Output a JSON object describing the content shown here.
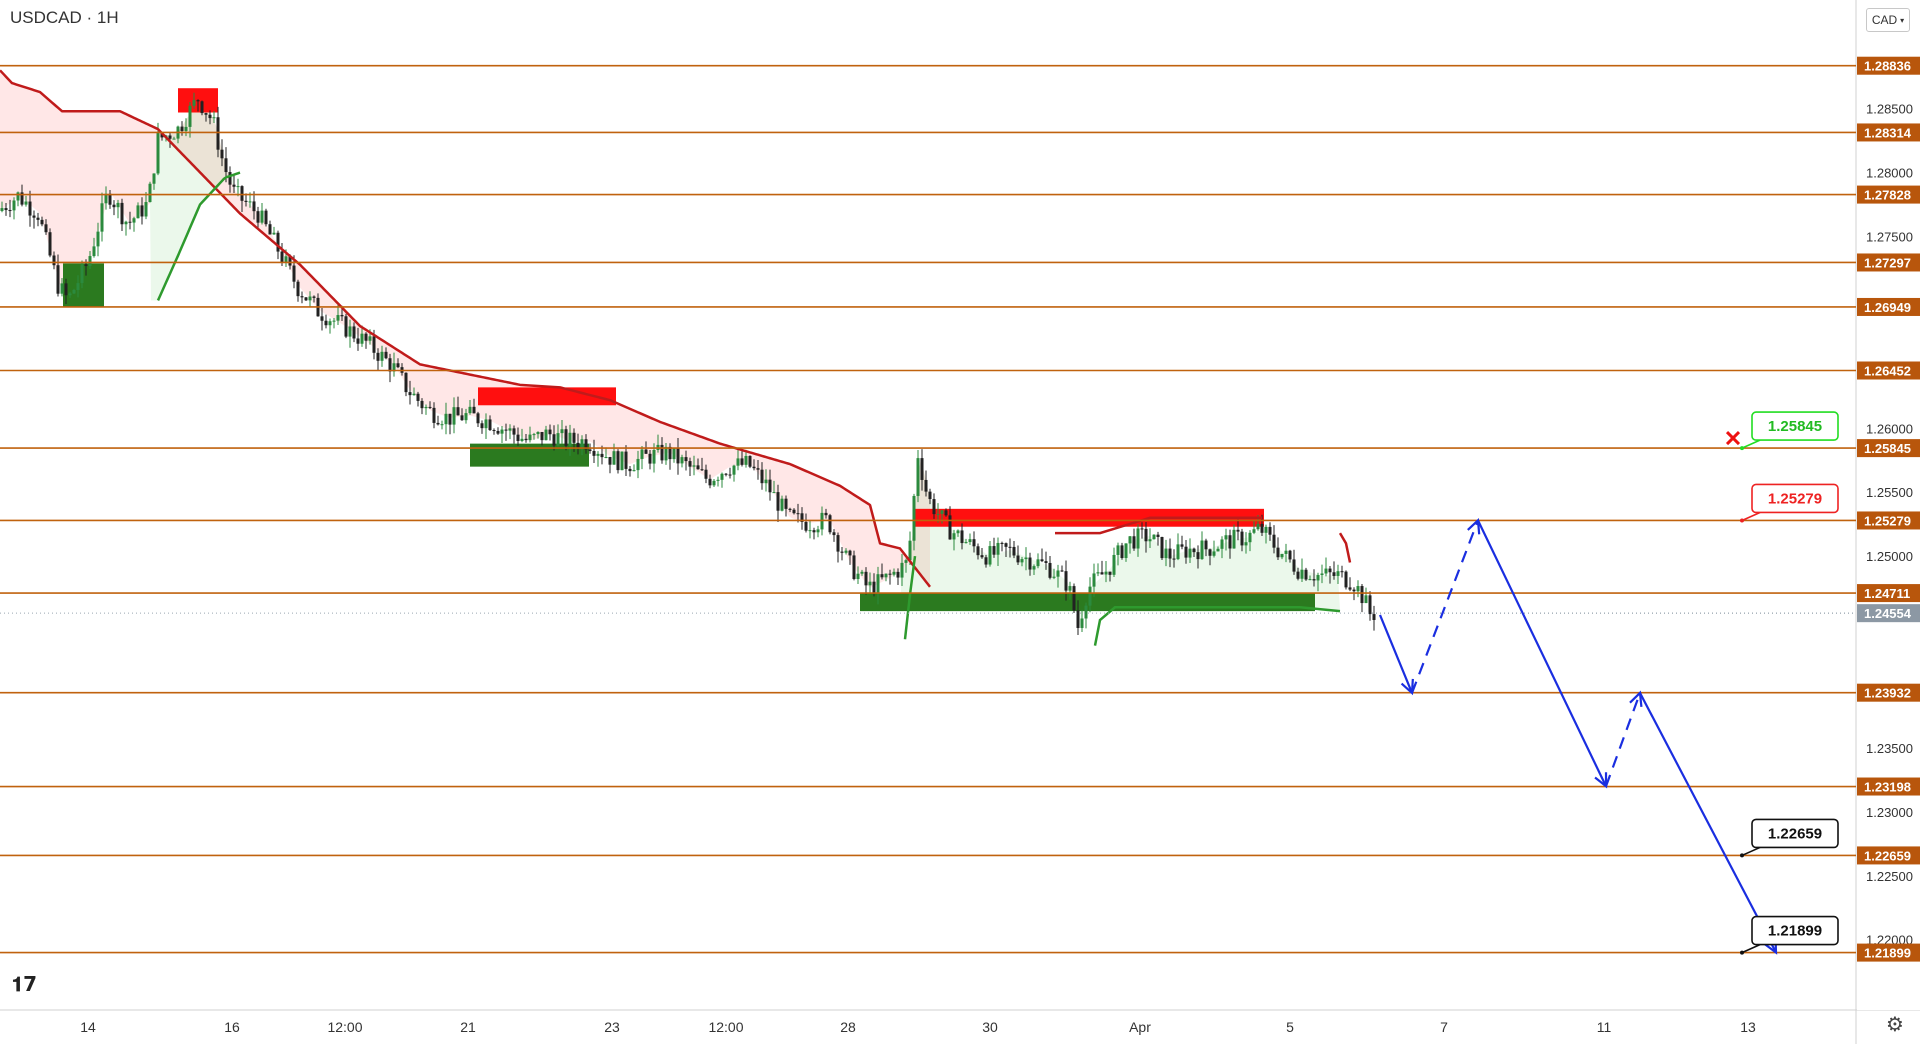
{
  "header": {
    "symbol": "USDCAD · 1H",
    "currency": "CAD"
  },
  "colors": {
    "level_line": "#c0620e",
    "level_label_bg": "#b8560c",
    "resist_line": "#c01b1b",
    "support_line": "#2e9a2e",
    "resist_zone": "#ff0f0f",
    "support_zone": "#2b7a1f",
    "projection": "#1a2ee0",
    "bull_candle": "#2b8a3e",
    "bear_candle": "#222222"
  },
  "chart_data": {
    "type": "candlestick",
    "symbol": "USDCAD",
    "timeframe": "1H",
    "ylim": [
      1.2145,
      1.2935
    ],
    "price_ticks": [
      "1.28500",
      "1.28000",
      "1.27500",
      "1.26000",
      "1.25500",
      "1.25000",
      "1.23500",
      "1.23000",
      "1.22500",
      "1.22000"
    ],
    "time_ticks": [
      "14",
      "16",
      "12:00",
      "21",
      "23",
      "12:00",
      "28",
      "30",
      "Apr",
      "5",
      "7",
      "11",
      "13"
    ],
    "levels": [
      1.28836,
      1.28314,
      1.27828,
      1.27297,
      1.26949,
      1.26452,
      1.25845,
      1.25279,
      1.24711,
      1.23932,
      1.23198,
      1.22659,
      1.21899
    ],
    "level_labels": [
      "1.28836",
      "1.28314",
      "1.27828",
      "1.27297",
      "1.26949",
      "1.26452",
      "1.25845",
      "1.25279",
      "1.24711",
      "1.23932",
      "1.23198",
      "1.22659",
      "1.21899"
    ],
    "current_price": 1.24554,
    "current_price_label": "1.24554",
    "callouts": [
      {
        "label": "1.25845",
        "price": 1.25845,
        "style": "green"
      },
      {
        "label": "1.25279",
        "price": 1.25279,
        "style": "red"
      },
      {
        "label": "1.22659",
        "price": 1.22659,
        "style": "black"
      },
      {
        "label": "1.21899",
        "price": 1.21899,
        "style": "black"
      }
    ],
    "resistance_zones": [
      {
        "from_bar": 178,
        "to_bar": 218,
        "high": 1.2866,
        "low": 1.2847
      },
      {
        "from_bar": 478,
        "to_bar": 616,
        "high": 1.2632,
        "low": 1.2618
      },
      {
        "from_bar": 913,
        "to_bar": 1264,
        "high": 1.2537,
        "low": 1.2523
      }
    ],
    "support_zones": [
      {
        "from_bar": 63,
        "to_bar": 104,
        "high": 1.2729,
        "low": 1.2695
      },
      {
        "from_bar": 470,
        "to_bar": 589,
        "high": 1.2588,
        "low": 1.257
      },
      {
        "from_bar": 860,
        "to_bar": 1315,
        "high": 1.2471,
        "low": 1.2457
      }
    ],
    "projection_path": [
      {
        "time_index": 1380,
        "price": 1.2454,
        "style": "solid"
      },
      {
        "time_index": 1412,
        "price": 1.2393,
        "style": "solid"
      },
      {
        "time_index": 1478,
        "price": 1.2528,
        "style": "dashed"
      },
      {
        "time_index": 1606,
        "price": 1.232,
        "style": "solid"
      },
      {
        "time_index": 1640,
        "price": 1.2393,
        "style": "dashed"
      },
      {
        "time_index": 1776,
        "price": 1.219,
        "style": "solid"
      }
    ],
    "close_path": [
      [
        0,
        1.277
      ],
      [
        20,
        1.2782
      ],
      [
        40,
        1.2768
      ],
      [
        60,
        1.2712
      ],
      [
        70,
        1.27
      ],
      [
        90,
        1.273
      ],
      [
        110,
        1.2785
      ],
      [
        130,
        1.276
      ],
      [
        150,
        1.2776
      ],
      [
        160,
        1.2826
      ],
      [
        180,
        1.2834
      ],
      [
        200,
        1.2858
      ],
      [
        215,
        1.284
      ],
      [
        225,
        1.2808
      ],
      [
        235,
        1.2785
      ],
      [
        260,
        1.2768
      ],
      [
        280,
        1.274
      ],
      [
        300,
        1.271
      ],
      [
        320,
        1.2692
      ],
      [
        345,
        1.268
      ],
      [
        370,
        1.2666
      ],
      [
        395,
        1.2648
      ],
      [
        410,
        1.263
      ],
      [
        430,
        1.2614
      ],
      [
        450,
        1.2608
      ],
      [
        470,
        1.261
      ],
      [
        490,
        1.2606
      ],
      [
        510,
        1.2598
      ],
      [
        530,
        1.259
      ],
      [
        550,
        1.2596
      ],
      [
        570,
        1.259
      ],
      [
        590,
        1.259
      ],
      [
        610,
        1.2578
      ],
      [
        630,
        1.2572
      ],
      [
        650,
        1.2578
      ],
      [
        670,
        1.2581
      ],
      [
        690,
        1.257
      ],
      [
        710,
        1.256
      ],
      [
        730,
        1.257
      ],
      [
        750,
        1.2572
      ],
      [
        770,
        1.2554
      ],
      [
        790,
        1.253
      ],
      [
        810,
        1.2526
      ],
      [
        830,
        1.2528
      ],
      [
        850,
        1.2495
      ],
      [
        870,
        1.2475
      ],
      [
        890,
        1.2483
      ],
      [
        910,
        1.2495
      ],
      [
        920,
        1.258
      ],
      [
        930,
        1.2545
      ],
      [
        950,
        1.2522
      ],
      [
        970,
        1.251
      ],
      [
        990,
        1.25
      ],
      [
        1010,
        1.2505
      ],
      [
        1030,
        1.2498
      ],
      [
        1050,
        1.2492
      ],
      [
        1070,
        1.2478
      ],
      [
        1080,
        1.2445
      ],
      [
        1090,
        1.2475
      ],
      [
        1110,
        1.249
      ],
      [
        1130,
        1.2512
      ],
      [
        1150,
        1.2516
      ],
      [
        1170,
        1.25
      ],
      [
        1190,
        1.2505
      ],
      [
        1210,
        1.2506
      ],
      [
        1230,
        1.2512
      ],
      [
        1250,
        1.2515
      ],
      [
        1262,
        1.2522
      ],
      [
        1280,
        1.2505
      ],
      [
        1300,
        1.249
      ],
      [
        1320,
        1.2485
      ],
      [
        1340,
        1.2485
      ],
      [
        1355,
        1.248
      ],
      [
        1365,
        1.2468
      ],
      [
        1372,
        1.2455
      ]
    ],
    "resistance_line": [
      [
        0,
        1.288
      ],
      [
        12,
        1.287
      ],
      [
        40,
        1.2863
      ],
      [
        62,
        1.2848
      ],
      [
        120,
        1.2848
      ],
      [
        158,
        1.2834
      ],
      [
        240,
        1.2768
      ],
      [
        300,
        1.2728
      ],
      [
        360,
        1.268
      ],
      [
        420,
        1.265
      ],
      [
        520,
        1.2634
      ],
      [
        560,
        1.2632
      ],
      [
        610,
        1.2622
      ],
      [
        660,
        1.2605
      ],
      [
        720,
        1.2588
      ],
      [
        790,
        1.2572
      ],
      [
        840,
        1.2555
      ],
      [
        870,
        1.254
      ],
      [
        880,
        1.251
      ],
      [
        900,
        1.2506
      ],
      [
        930,
        1.2476
      ]
    ],
    "support_line": [
      [
        158,
        1.27
      ],
      [
        178,
        1.2735
      ],
      [
        200,
        1.2775
      ],
      [
        225,
        1.2796
      ],
      [
        240,
        1.28
      ]
    ]
  }
}
